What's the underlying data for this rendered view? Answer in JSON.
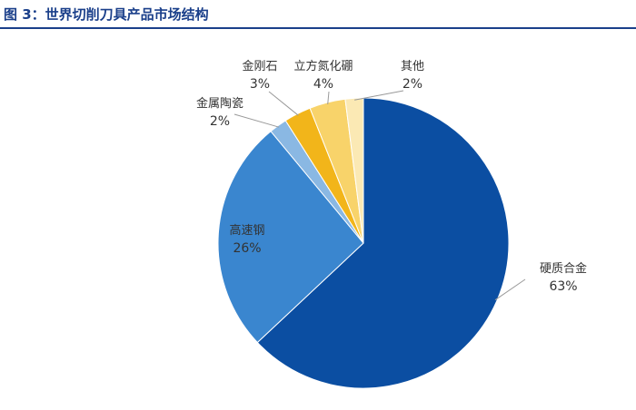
{
  "figure": {
    "title": "图 3：世界切削刀具产品市场结构"
  },
  "colors": {
    "title": "#1a3f8a"
  },
  "chart_data": {
    "type": "pie",
    "title": "",
    "slices": [
      {
        "label": "硬质合金",
        "value": 63,
        "display": "63%",
        "color": "#0b4ea2"
      },
      {
        "label": "高速钢",
        "value": 26,
        "display": "26%",
        "color": "#3a86cf"
      },
      {
        "label": "金属陶瓷",
        "value": 2,
        "display": "2%",
        "color": "#8ab8e3"
      },
      {
        "label": "金刚石",
        "value": 3,
        "display": "3%",
        "color": "#f2b51a"
      },
      {
        "label": "立方氮化硼",
        "value": 4,
        "display": "4%",
        "color": "#f8d36a"
      },
      {
        "label": "其他",
        "value": 2,
        "display": "2%",
        "color": "#fbe9b4"
      }
    ]
  }
}
